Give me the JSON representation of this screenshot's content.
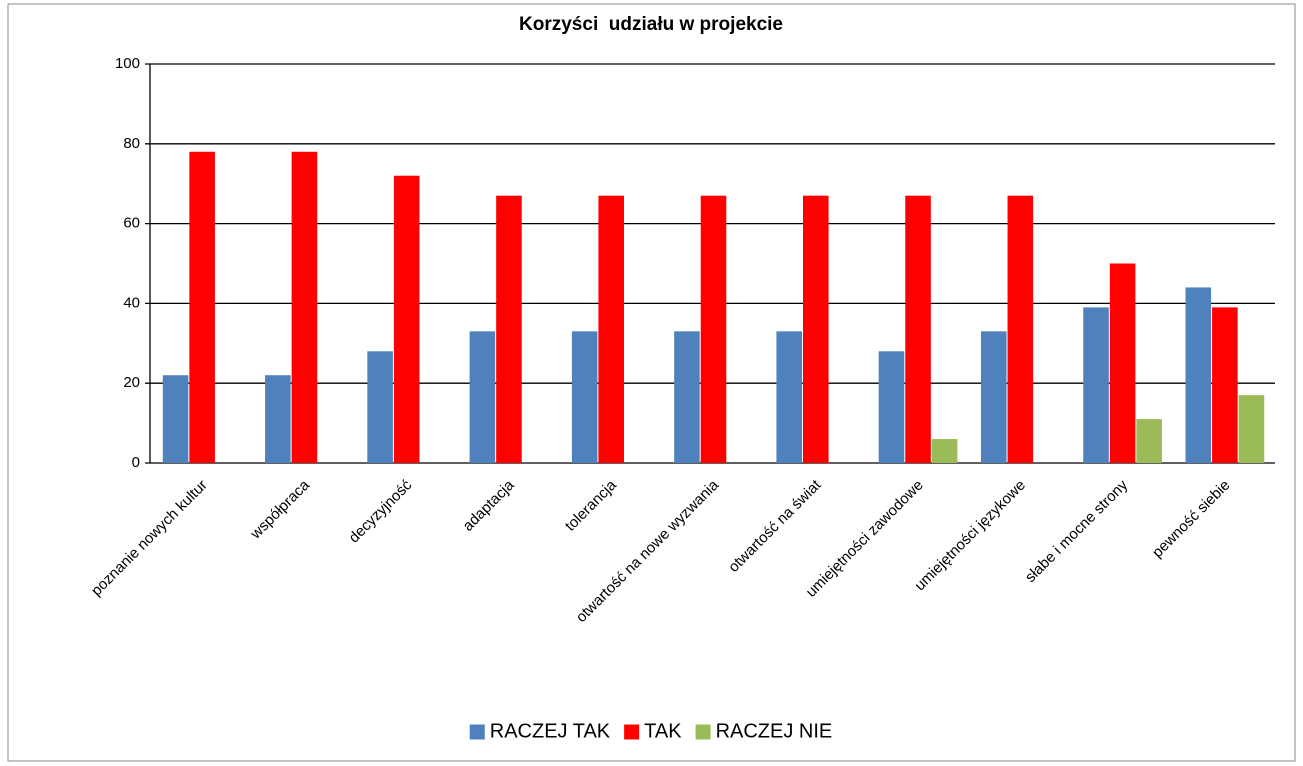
{
  "chart_data": {
    "type": "bar",
    "title": "Korzyści  udziału w projekcie",
    "categories": [
      "poznanie nowych kultur",
      "współpraca",
      "decyzyjność",
      "adaptacja",
      "tolerancja",
      "otwartość na nowe wyzwania",
      "otwartość na świat",
      "umiejętności zawodowe",
      "umiejętności językowe",
      "słabe i mocne strony",
      "pewność siebie"
    ],
    "series": [
      {
        "name": "RACZEJ TAK",
        "color": "#4f81bd",
        "values": [
          22,
          22,
          28,
          33,
          33,
          33,
          33,
          28,
          33,
          39,
          44
        ]
      },
      {
        "name": "TAK",
        "color": "#ff0000",
        "values": [
          78,
          78,
          72,
          67,
          67,
          67,
          67,
          67,
          67,
          50,
          39
        ]
      },
      {
        "name": "RACZEJ NIE",
        "color": "#9bbb59",
        "values": [
          0,
          0,
          0,
          0,
          0,
          0,
          0,
          6,
          0,
          11,
          17
        ]
      }
    ],
    "ylim": [
      0,
      100
    ],
    "yticks": [
      0,
      20,
      40,
      60,
      80,
      100
    ],
    "grid": true,
    "legend": "bottom"
  }
}
